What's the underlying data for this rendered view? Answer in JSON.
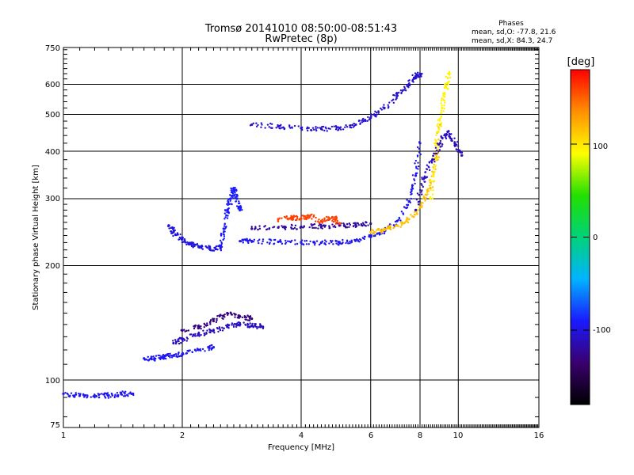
{
  "chart_data": {
    "type": "scatter",
    "title": "Tromsø 20141010 08:50:00-08:51:43",
    "subtitle": "RwPretec (8p)",
    "xlabel": "Frequency [MHz]",
    "ylabel": "Stationary phase Virtual Height [km]",
    "x_scale": "log",
    "y_scale": "log",
    "xlim": [
      1,
      16
    ],
    "ylim": [
      75,
      750
    ],
    "x_ticks": [
      "1",
      "2",
      "4",
      "6",
      "8",
      "10",
      "16"
    ],
    "y_ticks": [
      "75",
      "100",
      "200",
      "300",
      "400",
      "500",
      "600",
      "750"
    ],
    "grid": true,
    "phases": {
      "header": "Phases",
      "line_o": "mean, sd,O: -77.8, 21.6",
      "line_x": "mean, sd,X:  84.3, 24.7"
    },
    "colorbar": {
      "label": "[deg]",
      "range": [
        -180,
        180
      ],
      "ticks": [
        "100",
        "0",
        "-100"
      ],
      "tick_values": [
        100,
        0,
        -100
      ],
      "colors": [
        "#000000",
        "#3a006e",
        "#1a1aff",
        "#00b4ff",
        "#00d27a",
        "#22e000",
        "#ffff00",
        "#ff9000",
        "#ff0000"
      ]
    },
    "traces": [
      {
        "name": "",
        "phase": -95,
        "x": [
          1.0,
          1.1,
          1.2,
          1.3,
          1.4,
          1.5
        ],
        "y": [
          92,
          91,
          91,
          91,
          92,
          92
        ]
      },
      {
        "name": "",
        "phase": -95,
        "x": [
          1.6,
          1.7,
          1.8,
          1.9,
          2.0,
          2.2,
          2.4
        ],
        "y": [
          114,
          114,
          115,
          116,
          117,
          120,
          122
        ]
      },
      {
        "name": "",
        "phase": -110,
        "x": [
          1.9,
          2.0,
          2.2,
          2.4,
          2.6,
          2.8,
          3.0,
          3.2
        ],
        "y": [
          125,
          128,
          132,
          135,
          138,
          140,
          139,
          138
        ]
      },
      {
        "name": "",
        "phase": -130,
        "x": [
          2.0,
          2.2,
          2.4,
          2.6,
          2.8,
          3.0
        ],
        "y": [
          135,
          138,
          143,
          150,
          147,
          145
        ]
      },
      {
        "name": "",
        "phase": -100,
        "x": [
          1.85,
          1.9,
          2.0,
          2.1,
          2.2,
          2.35,
          2.5
        ],
        "y": [
          255,
          245,
          235,
          228,
          224,
          222,
          222
        ]
      },
      {
        "name": "",
        "phase": -90,
        "x": [
          2.5,
          2.55,
          2.6,
          2.65,
          2.7,
          2.75,
          2.8
        ],
        "y": [
          225,
          250,
          280,
          300,
          320,
          300,
          280
        ]
      },
      {
        "name": "",
        "phase": -95,
        "x": [
          2.8,
          3.0,
          3.5,
          4.0,
          4.5,
          5.0,
          5.5,
          6.0,
          6.5,
          7.0,
          7.5,
          7.8,
          8.0
        ],
        "y": [
          232,
          232,
          231,
          230,
          230,
          230,
          233,
          238,
          248,
          262,
          295,
          345,
          420
        ]
      },
      {
        "name": "",
        "phase": -120,
        "x": [
          3.0,
          3.5,
          4.0,
          4.5,
          5.0,
          5.5,
          6.0
        ],
        "y": [
          250,
          252,
          253,
          254,
          255,
          256,
          258
        ]
      },
      {
        "name": "",
        "phase": -105,
        "x": [
          3.0,
          3.5,
          4.0,
          4.5,
          5.0,
          5.5,
          6.0,
          6.5,
          7.0,
          7.5,
          7.8,
          8.0
        ],
        "y": [
          470,
          465,
          460,
          458,
          460,
          470,
          490,
          520,
          560,
          600,
          630,
          640
        ]
      },
      {
        "name": "",
        "phase": 160,
        "x": [
          3.5,
          3.8,
          4.0,
          4.2,
          4.5,
          4.8,
          5.0
        ],
        "y": [
          265,
          268,
          266,
          270,
          262,
          268,
          258
        ]
      },
      {
        "name": "",
        "phase": 115,
        "x": [
          6.0,
          6.5,
          7.0,
          7.5,
          8.0,
          8.5,
          8.8,
          9.0
        ],
        "y": [
          245,
          248,
          255,
          265,
          285,
          320,
          380,
          470
        ]
      },
      {
        "name": "",
        "phase": 95,
        "x": [
          8.5,
          8.7,
          8.9,
          9.1,
          9.3,
          9.5
        ],
        "y": [
          300,
          380,
          450,
          520,
          590,
          640
        ]
      },
      {
        "name": "",
        "phase": -110,
        "x": [
          7.8,
          8.2,
          8.6,
          9.0,
          9.4,
          9.8,
          10.2
        ],
        "y": [
          280,
          340,
          380,
          420,
          450,
          420,
          390
        ]
      }
    ]
  }
}
